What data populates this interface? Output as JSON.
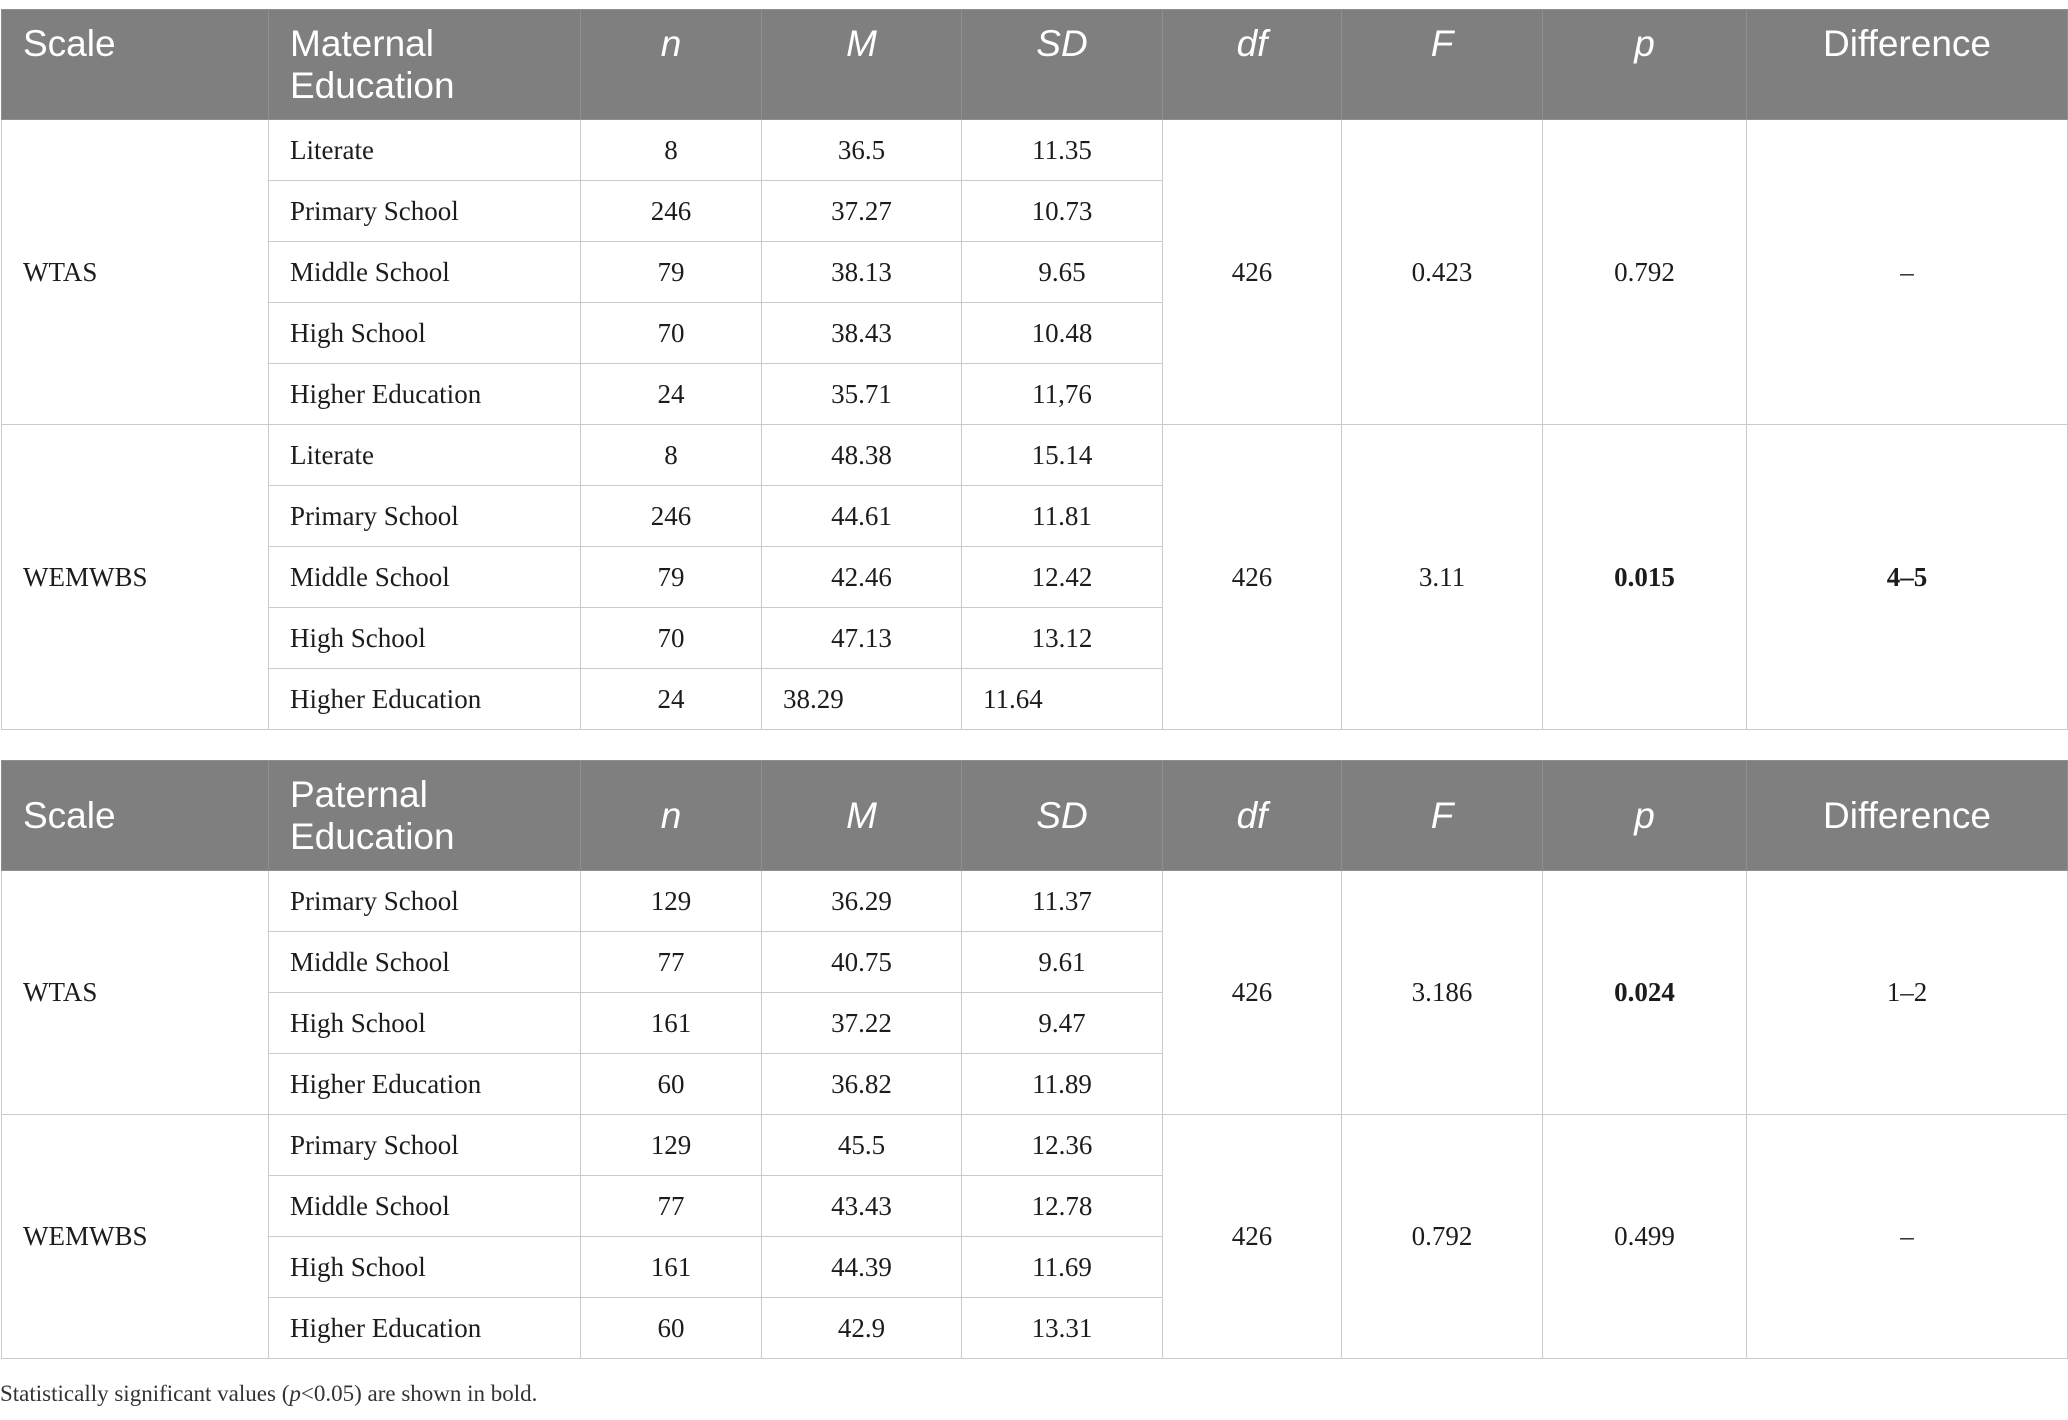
{
  "tables": [
    {
      "columns": [
        "Scale",
        "Maternal Education",
        "n",
        "M",
        "SD",
        "df",
        "F",
        "p",
        "Difference"
      ],
      "groups": [
        {
          "scale": "WTAS",
          "df": "426",
          "F": "0.423",
          "p": "0.792",
          "difference": "–",
          "p_bold": false,
          "difference_bold": false,
          "rows": [
            {
              "education": "Literate",
              "n": "8",
              "M": "36.5",
              "SD": "11.35"
            },
            {
              "education": "Primary School",
              "n": "246",
              "M": "37.27",
              "SD": "10.73"
            },
            {
              "education": "Middle School",
              "n": "79",
              "M": "38.13",
              "SD": "9.65"
            },
            {
              "education": "High School",
              "n": "70",
              "M": "38.43",
              "SD": "10.48"
            },
            {
              "education": "Higher Education",
              "n": "24",
              "M": "35.71",
              "SD": "11,76"
            }
          ]
        },
        {
          "scale": "WEMWBS",
          "df": "426",
          "F": "3.11",
          "p": "0.015",
          "difference": "4–5",
          "p_bold": true,
          "difference_bold": true,
          "rows": [
            {
              "education": "Literate",
              "n": "8",
              "M": "48.38",
              "SD": "15.14"
            },
            {
              "education": "Primary School",
              "n": "246",
              "M": "44.61",
              "SD": "11.81"
            },
            {
              "education": "Middle School",
              "n": "79",
              "M": "42.46",
              "SD": "12.42"
            },
            {
              "education": "High School",
              "n": "70",
              "M": "47.13",
              "SD": "13.12"
            },
            {
              "education": "Higher Education",
              "n": "24",
              "M": "38.29",
              "SD": "11.64"
            }
          ]
        }
      ]
    },
    {
      "columns": [
        "Scale",
        "Paternal Education",
        "n",
        "M",
        "SD",
        "df",
        "F",
        "p",
        "Difference"
      ],
      "groups": [
        {
          "scale": "WTAS",
          "df": "426",
          "F": "3.186",
          "p": "0.024",
          "difference": "1–2",
          "p_bold": true,
          "difference_bold": false,
          "rows": [
            {
              "education": "Primary School",
              "n": "129",
              "M": "36.29",
              "SD": "11.37"
            },
            {
              "education": "Middle School",
              "n": "77",
              "M": "40.75",
              "SD": "9.61"
            },
            {
              "education": "High School",
              "n": "161",
              "M": "37.22",
              "SD": "9.47"
            },
            {
              "education": "Higher Education",
              "n": "60",
              "M": "36.82",
              "SD": "11.89"
            }
          ]
        },
        {
          "scale": "WEMWBS",
          "df": "426",
          "F": "0.792",
          "p": "0.499",
          "difference": "–",
          "p_bold": false,
          "difference_bold": false,
          "rows": [
            {
              "education": "Primary School",
              "n": "129",
              "M": "45.5",
              "SD": "12.36"
            },
            {
              "education": "Middle School",
              "n": "77",
              "M": "43.43",
              "SD": "12.78"
            },
            {
              "education": "High School",
              "n": "161",
              "M": "44.39",
              "SD": "11.69"
            },
            {
              "education": "Higher Education",
              "n": "60",
              "M": "42.9",
              "SD": "13.31"
            }
          ]
        }
      ]
    }
  ],
  "footnote": {
    "before": "Statistically significant values (",
    "symbol": "p",
    "after": "<0.05) are shown in bold."
  }
}
